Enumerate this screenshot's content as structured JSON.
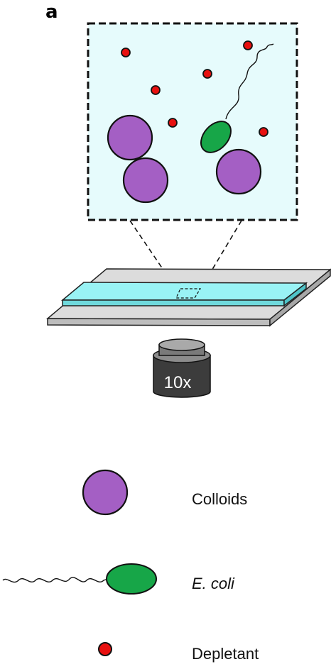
{
  "panel_label": "a",
  "objective": {
    "magnification_label": "10x"
  },
  "legend": {
    "colloids_label": "Colloids",
    "ecoli_label": "E. coli",
    "depletant_label": "Depletant"
  },
  "colors": {
    "colloid_fill": "#a45fc4",
    "ecoli_fill": "#17a648",
    "depletant_fill": "#e8100f",
    "zoom_background": "#e6fbfc",
    "channel_fill": "#99f3f5",
    "slide_fill": "#dcdcdc",
    "objective_body": "#3c3c3c"
  }
}
